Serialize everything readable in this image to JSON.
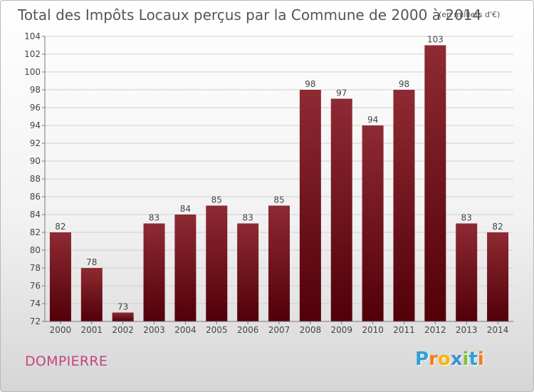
{
  "chart_data": {
    "type": "bar",
    "title": "Total des Impôts Locaux perçus par la Commune de 2000 à 2014",
    "unit": "(en milliers d'€)",
    "categories": [
      "2000",
      "2001",
      "2002",
      "2003",
      "2004",
      "2005",
      "2006",
      "2007",
      "2008",
      "2009",
      "2010",
      "2011",
      "2012",
      "2013",
      "2014"
    ],
    "values": [
      82,
      78,
      73,
      83,
      84,
      85,
      83,
      85,
      98,
      97,
      94,
      98,
      103,
      83,
      82
    ],
    "ylim": [
      72,
      104
    ],
    "yticks": [
      72,
      74,
      76,
      78,
      80,
      82,
      84,
      86,
      88,
      90,
      92,
      94,
      96,
      98,
      100,
      102,
      104
    ],
    "xlabel": "",
    "ylabel": "",
    "grid": true,
    "bar_color": "#7a1a22"
  },
  "footer": {
    "commune": "DOMPIERRE",
    "logo": {
      "letters": [
        "P",
        "r",
        "o",
        "x",
        "i",
        "t",
        "i"
      ],
      "colors": [
        "#2f9fd6",
        "#f07d1e",
        "#f7b500",
        "#3f8fd1",
        "#7cc142",
        "#2f9fd6",
        "#f07d1e"
      ]
    }
  }
}
